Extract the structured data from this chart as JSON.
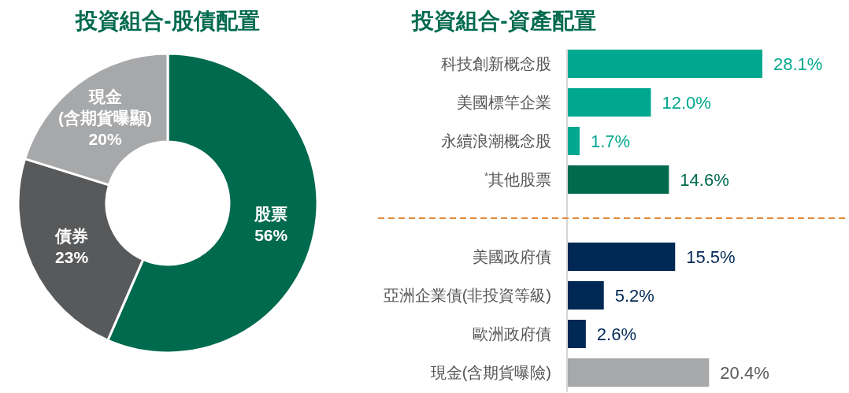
{
  "chart_data": [
    {
      "type": "donut",
      "title": "投資組合-股債配置",
      "categories": [
        "股票",
        "債券",
        "現金\n(含期貨曝顯)"
      ],
      "values": [
        56,
        23,
        20
      ],
      "value_labels": [
        "56%",
        "23%",
        "20%"
      ],
      "colors": [
        "#006a4e",
        "#58595b",
        "#a7a8aa"
      ]
    },
    {
      "type": "bar",
      "orientation": "horizontal",
      "title": "投資組合-資產配置",
      "categories": [
        "科技創新概念股",
        "美國標竿企業",
        "永續浪潮概念股",
        "$^{*}$其他股票",
        null,
        "美國政府債",
        "亞洲企業債(非投資等級)",
        "歐洲政府債",
        "現金(含期貨曝險)"
      ],
      "values": [
        28.1,
        12.0,
        1.7,
        14.6,
        null,
        15.5,
        5.2,
        2.6,
        20.4
      ],
      "value_labels": [
        "28.1%",
        "12.0%",
        "1.7%",
        "14.6%",
        null,
        "15.5%",
        "5.2%",
        "2.6%",
        "20.4%"
      ],
      "colors": [
        "#00a88f",
        "#00a88f",
        "#00a88f",
        "#006a4e",
        null,
        "#002855",
        "#002855",
        "#002855",
        "#a7a8aa"
      ]
    }
  ]
}
